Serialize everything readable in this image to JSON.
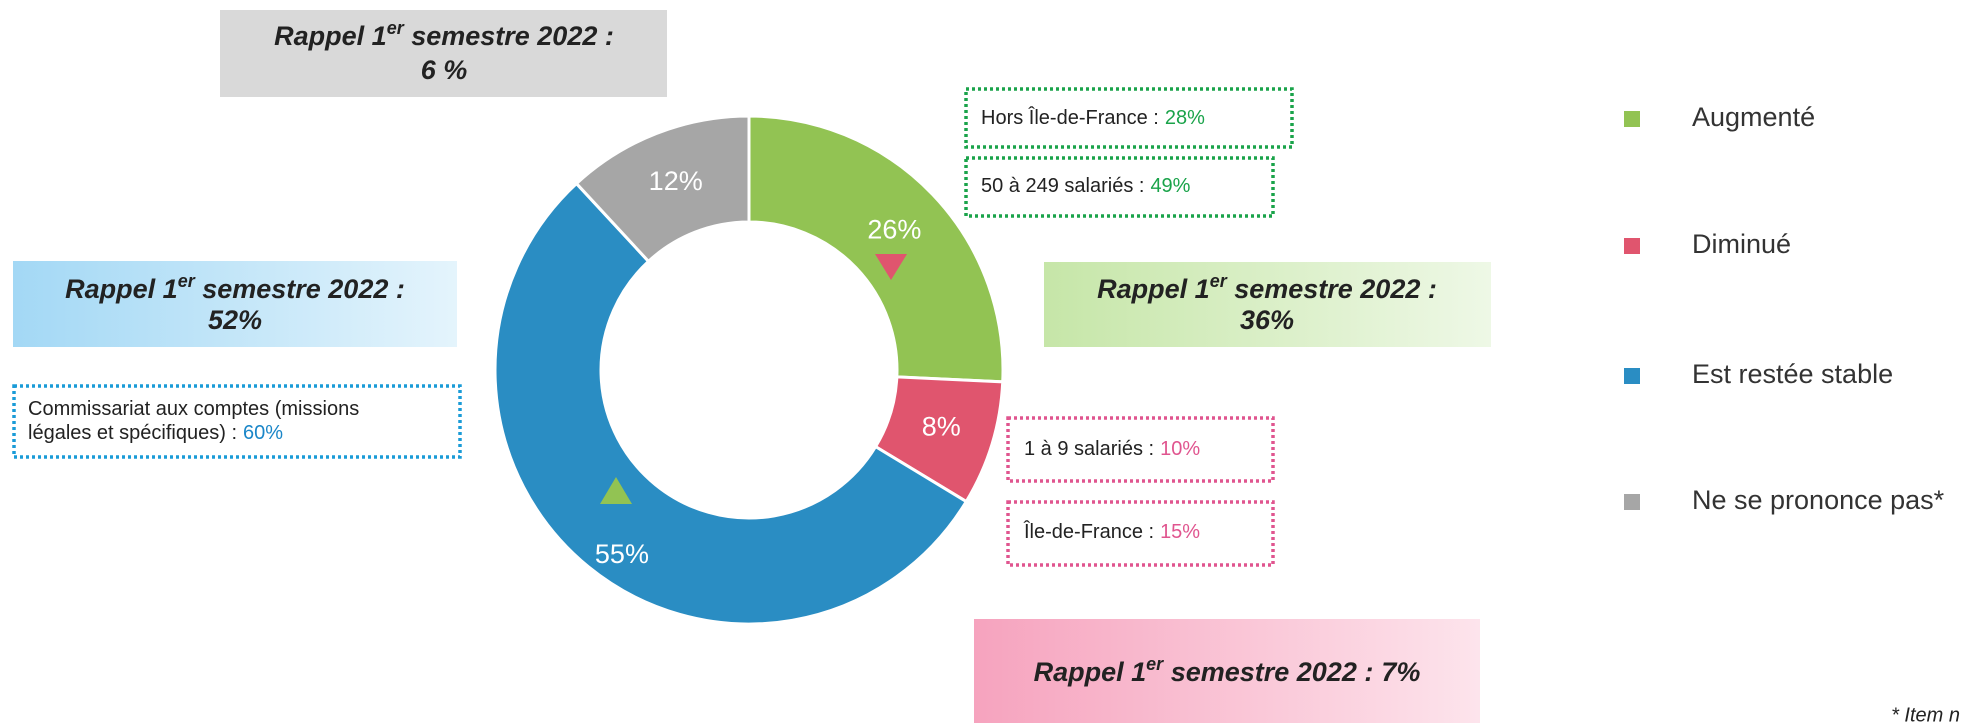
{
  "chart_data": {
    "type": "pie",
    "categories": [
      "Augmenté",
      "Diminué",
      "Est restée stable",
      "Ne se prononce pas*"
    ],
    "values": [
      26,
      8,
      55,
      12
    ],
    "value_labels": [
      "26%",
      "8%",
      "55%",
      "12%"
    ],
    "colors": [
      "#92c353",
      "#e0556e",
      "#2a8dc3",
      "#a6a6a6"
    ],
    "legend": "right",
    "recalls": [
      {
        "prefix": "Rappel 1",
        "sup": "er",
        "suffix": " semestre 2022 :",
        "value": "6 %"
      },
      {
        "prefix": "Rappel 1",
        "sup": "er",
        "suffix": "  semestre 2022 :",
        "value": "52%"
      },
      {
        "prefix": "Rappel 1",
        "sup": "er",
        "suffix": " semestre 2022 :",
        "value": "36%"
      },
      {
        "prefix": "Rappel 1",
        "sup": "er",
        "suffix": " semestre  2022 :",
        "value": "7%"
      }
    ],
    "details": [
      {
        "label": "Hors Île-de-France  :",
        "value": "28%"
      },
      {
        "label": "50 à 249 salariés :",
        "value": "49%"
      },
      {
        "label": "1 à 9 salariés :",
        "value": "10%"
      },
      {
        "label": "Île-de-France :",
        "value": "15%"
      },
      {
        "label": "Commissariat aux comptes (missions",
        "label2": "légales et spécifiques) :",
        "value": "60%"
      }
    ],
    "footnote": "* Item n"
  }
}
